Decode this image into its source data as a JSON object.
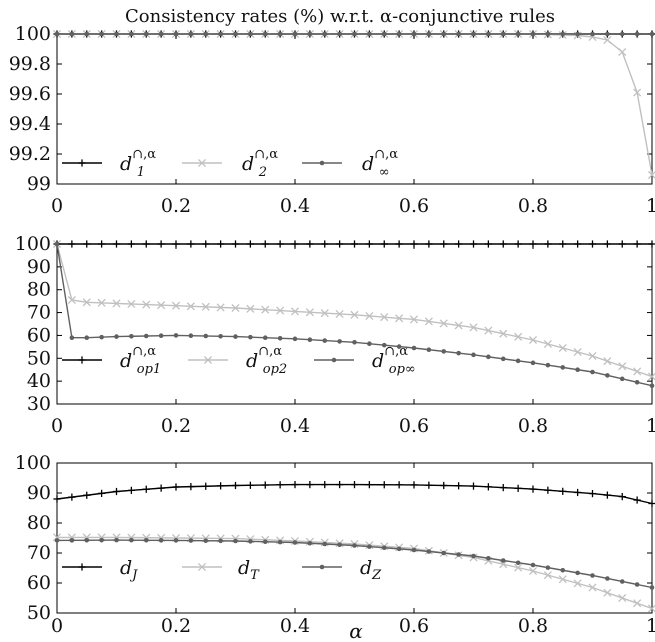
{
  "chart_data": [
    {
      "type": "line",
      "title": "Consistency rates (%) w.r.t. α-conjunctive rules",
      "xlabel": "",
      "ylabel": "",
      "xlim": [
        0,
        1
      ],
      "ylim": [
        99,
        100
      ],
      "x_ticks": [
        "0",
        "0.2",
        "0.4",
        "0.6",
        "0.8",
        "1"
      ],
      "y_ticks": [
        "99",
        "99.2",
        "99.4",
        "99.6",
        "99.8",
        "100"
      ],
      "grid": false,
      "legend_position": "bottom-left",
      "series": [
        {
          "name": "d_1^{∩,α}",
          "legend": {
            "base": "d",
            "sub": "1",
            "sup": "∩,α"
          },
          "color": "#000000",
          "marker": "plus",
          "x": [
            0,
            0.1,
            0.2,
            0.3,
            0.4,
            0.5,
            0.6,
            0.7,
            0.8,
            0.9,
            1.0
          ],
          "y": [
            100,
            100,
            100,
            100,
            100,
            100,
            100,
            100,
            100,
            100,
            100
          ]
        },
        {
          "name": "d_2^{∩,α}",
          "legend": {
            "base": "d",
            "sub": "2",
            "sup": "∩,α"
          },
          "color": "#c0c0c0",
          "marker": "x",
          "x": [
            0,
            0.1,
            0.2,
            0.3,
            0.4,
            0.5,
            0.6,
            0.7,
            0.8,
            0.875,
            0.9,
            0.925,
            0.95,
            0.975,
            1.0
          ],
          "y": [
            100,
            100,
            100,
            100,
            100,
            100,
            100,
            100,
            100,
            99.99,
            99.98,
            99.96,
            99.88,
            99.61,
            99.06
          ]
        },
        {
          "name": "d_∞^{∩,α}",
          "legend": {
            "base": "d",
            "sub": "∞",
            "sup": "∩,α"
          },
          "color": "#606060",
          "marker": "dot",
          "x": [
            0,
            0.1,
            0.2,
            0.3,
            0.4,
            0.5,
            0.6,
            0.7,
            0.8,
            0.9,
            1.0
          ],
          "y": [
            100,
            100,
            100,
            100,
            100,
            100,
            100,
            100,
            100,
            100,
            100
          ]
        }
      ]
    },
    {
      "type": "line",
      "title": "",
      "xlabel": "",
      "ylabel": "",
      "xlim": [
        0,
        1
      ],
      "ylim": [
        30,
        100
      ],
      "x_ticks": [
        "0",
        "0.2",
        "0.4",
        "0.6",
        "0.8",
        "1"
      ],
      "y_ticks": [
        "30",
        "40",
        "50",
        "60",
        "70",
        "80",
        "90",
        "100"
      ],
      "grid": false,
      "legend_position": "bottom-left",
      "series": [
        {
          "name": "d_{op1}^{∩,α}",
          "legend": {
            "base": "d",
            "sub": "op1",
            "sup": "∩,α"
          },
          "color": "#000000",
          "marker": "plus",
          "x": [
            0,
            0.1,
            0.2,
            0.3,
            0.4,
            0.5,
            0.6,
            0.7,
            0.8,
            0.9,
            1.0
          ],
          "y": [
            100,
            100,
            100,
            100,
            100,
            100,
            100,
            100,
            100,
            100,
            100
          ]
        },
        {
          "name": "d_{op2}^{∩,α}",
          "legend": {
            "base": "d",
            "sub": "op2",
            "sup": "∩,α"
          },
          "color": "#c0c0c0",
          "marker": "x",
          "x": [
            0,
            0.025,
            0.05,
            0.1,
            0.2,
            0.3,
            0.4,
            0.5,
            0.6,
            0.7,
            0.8,
            0.9,
            1.0
          ],
          "y": [
            100,
            75.5,
            74.5,
            74,
            73,
            72,
            70.5,
            69,
            67,
            63.5,
            58,
            51,
            42
          ]
        },
        {
          "name": "d_{op∞}^{∩,α}",
          "legend": {
            "base": "d",
            "sub": "op∞",
            "sup": "∩,α"
          },
          "color": "#606060",
          "marker": "dot",
          "x": [
            0,
            0.025,
            0.05,
            0.1,
            0.2,
            0.3,
            0.4,
            0.5,
            0.6,
            0.7,
            0.8,
            0.9,
            1.0
          ],
          "y": [
            100,
            59,
            59,
            59.5,
            60,
            59.5,
            58.5,
            57,
            54.5,
            51.5,
            48,
            44,
            38
          ]
        }
      ]
    },
    {
      "type": "line",
      "title": "",
      "xlabel": "α",
      "ylabel": "",
      "xlim": [
        0,
        1
      ],
      "ylim": [
        50,
        100
      ],
      "x_ticks": [
        "0",
        "0.2",
        "0.4",
        "0.6",
        "0.8",
        "1"
      ],
      "y_ticks": [
        "50",
        "60",
        "70",
        "80",
        "90",
        "100"
      ],
      "grid": false,
      "legend_position": "bottom-left",
      "series": [
        {
          "name": "d_J",
          "legend": {
            "base": "d",
            "sub": "J",
            "sup": ""
          },
          "color": "#000000",
          "marker": "plus",
          "x": [
            0,
            0.1,
            0.2,
            0.3,
            0.4,
            0.5,
            0.6,
            0.7,
            0.8,
            0.9,
            0.95,
            1.0
          ],
          "y": [
            88,
            90.5,
            92,
            92.5,
            92.8,
            92.8,
            92.7,
            92.3,
            91.3,
            89.8,
            88.8,
            86.5
          ]
        },
        {
          "name": "d_T",
          "legend": {
            "base": "d",
            "sub": "T",
            "sup": ""
          },
          "color": "#c0c0c0",
          "marker": "x",
          "x": [
            0,
            0.1,
            0.2,
            0.3,
            0.4,
            0.5,
            0.6,
            0.7,
            0.8,
            0.9,
            1.0
          ],
          "y": [
            75.2,
            75.2,
            75,
            74.8,
            74,
            73,
            71.5,
            68.5,
            64,
            58.5,
            51.5
          ]
        },
        {
          "name": "d_Z",
          "legend": {
            "base": "d",
            "sub": "Z",
            "sup": ""
          },
          "color": "#606060",
          "marker": "dot",
          "x": [
            0,
            0.1,
            0.2,
            0.3,
            0.4,
            0.5,
            0.6,
            0.7,
            0.8,
            0.9,
            1.0
          ],
          "y": [
            74.2,
            74.3,
            74.2,
            74,
            73.5,
            72.5,
            71,
            69,
            66,
            62.5,
            58.5
          ]
        }
      ]
    }
  ]
}
